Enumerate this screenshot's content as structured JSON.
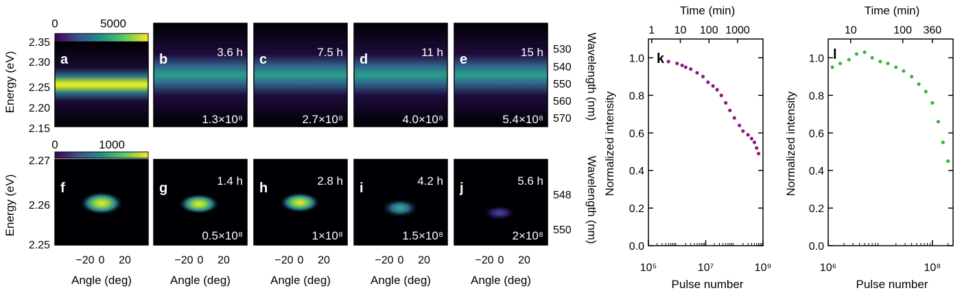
{
  "heatmaps": {
    "row1": {
      "colorbar_ticks": [
        "0",
        "5000"
      ],
      "ylabel_left": "Energy (eV)",
      "ylabel_right": "Wavelength (nm)",
      "yticks_left": [
        "2.35",
        "2.30",
        "2.25",
        "2.20",
        "2.15"
      ],
      "yticks_right": [
        "530",
        "540",
        "550",
        "560",
        "570"
      ],
      "panels": [
        {
          "letter": "a",
          "time": "",
          "pulses": ""
        },
        {
          "letter": "b",
          "time": "3.6 h",
          "pulses": "1.3×10⁸"
        },
        {
          "letter": "c",
          "time": "7.5 h",
          "pulses": "2.7×10⁸"
        },
        {
          "letter": "d",
          "time": "11 h",
          "pulses": "4.0×10⁸"
        },
        {
          "letter": "e",
          "time": "15 h",
          "pulses": "5.4×10⁸"
        }
      ]
    },
    "row2": {
      "colorbar_ticks": [
        "0",
        "1000"
      ],
      "ylabel_left": "Energy (eV)",
      "ylabel_right": "Wavelength (nm)",
      "yticks_left": [
        "2.27",
        "2.26",
        "2.25"
      ],
      "yticks_right": [
        "548",
        "550"
      ],
      "xlabel": "Angle (deg)",
      "xticks": [
        "−20",
        "0",
        "20"
      ],
      "panels": [
        {
          "letter": "f",
          "time": "",
          "pulses": ""
        },
        {
          "letter": "g",
          "time": "1.4 h",
          "pulses": "0.5×10⁸"
        },
        {
          "letter": "h",
          "time": "2.8 h",
          "pulses": "1×10⁸"
        },
        {
          "letter": "i",
          "time": "4.2 h",
          "pulses": "1.5×10⁸"
        },
        {
          "letter": "j",
          "time": "5.6 h",
          "pulses": "2×10⁸"
        }
      ]
    }
  },
  "chart_data": [
    {
      "type": "scatter",
      "panel": "k",
      "xlabel": "Pulse number",
      "ylabel": "Normalized intensity",
      "top_label": "Time (min)",
      "xscale": "log",
      "xlim": [
        100000,
        1000000000
      ],
      "ylim": [
        0,
        1.1
      ],
      "xtick_labels": [
        "10⁵",
        "10⁷",
        "10⁹"
      ],
      "ytick_labels": [
        "0.0",
        "0.2",
        "0.4",
        "0.6",
        "0.8",
        "1.0"
      ],
      "top_tick_labels": [
        "1",
        "10",
        "100",
        "1000"
      ],
      "color": "#8b1a7e",
      "series": [
        {
          "x": [
            500000,
            1000000,
            1500000,
            2000000,
            3000000,
            5000000,
            8000000,
            12000000,
            18000000,
            25000000,
            35000000,
            50000000,
            70000000,
            100000000,
            150000000,
            200000000,
            300000000,
            400000000,
            500000000,
            600000000,
            700000000
          ],
          "y": [
            0.98,
            0.97,
            0.96,
            0.95,
            0.94,
            0.92,
            0.9,
            0.87,
            0.85,
            0.83,
            0.8,
            0.76,
            0.72,
            0.68,
            0.64,
            0.61,
            0.59,
            0.57,
            0.55,
            0.52,
            0.49
          ]
        }
      ]
    },
    {
      "type": "scatter",
      "panel": "l",
      "xlabel": "Pulse number",
      "ylabel": "Normalized intensity",
      "top_label": "Time (min)",
      "xscale": "log",
      "xlim": [
        1000000,
        250000000
      ],
      "ylim": [
        0,
        1.1
      ],
      "xtick_labels": [
        "10⁶",
        "10⁸"
      ],
      "ytick_labels": [
        "0.0",
        "0.2",
        "0.4",
        "0.6",
        "0.8",
        "1.0"
      ],
      "top_tick_labels": [
        "10",
        "100",
        "360"
      ],
      "color": "#3cb43c",
      "series": [
        {
          "x": [
            1200000,
            1700000,
            2500000,
            3500000,
            5000000,
            7000000,
            10000000,
            14000000,
            20000000,
            28000000,
            40000000,
            55000000,
            75000000,
            100000000,
            130000000,
            160000000,
            200000000
          ],
          "y": [
            0.95,
            0.97,
            0.99,
            1.02,
            1.03,
            1.0,
            0.98,
            0.97,
            0.95,
            0.93,
            0.9,
            0.86,
            0.82,
            0.76,
            0.66,
            0.55,
            0.45
          ]
        }
      ]
    }
  ]
}
